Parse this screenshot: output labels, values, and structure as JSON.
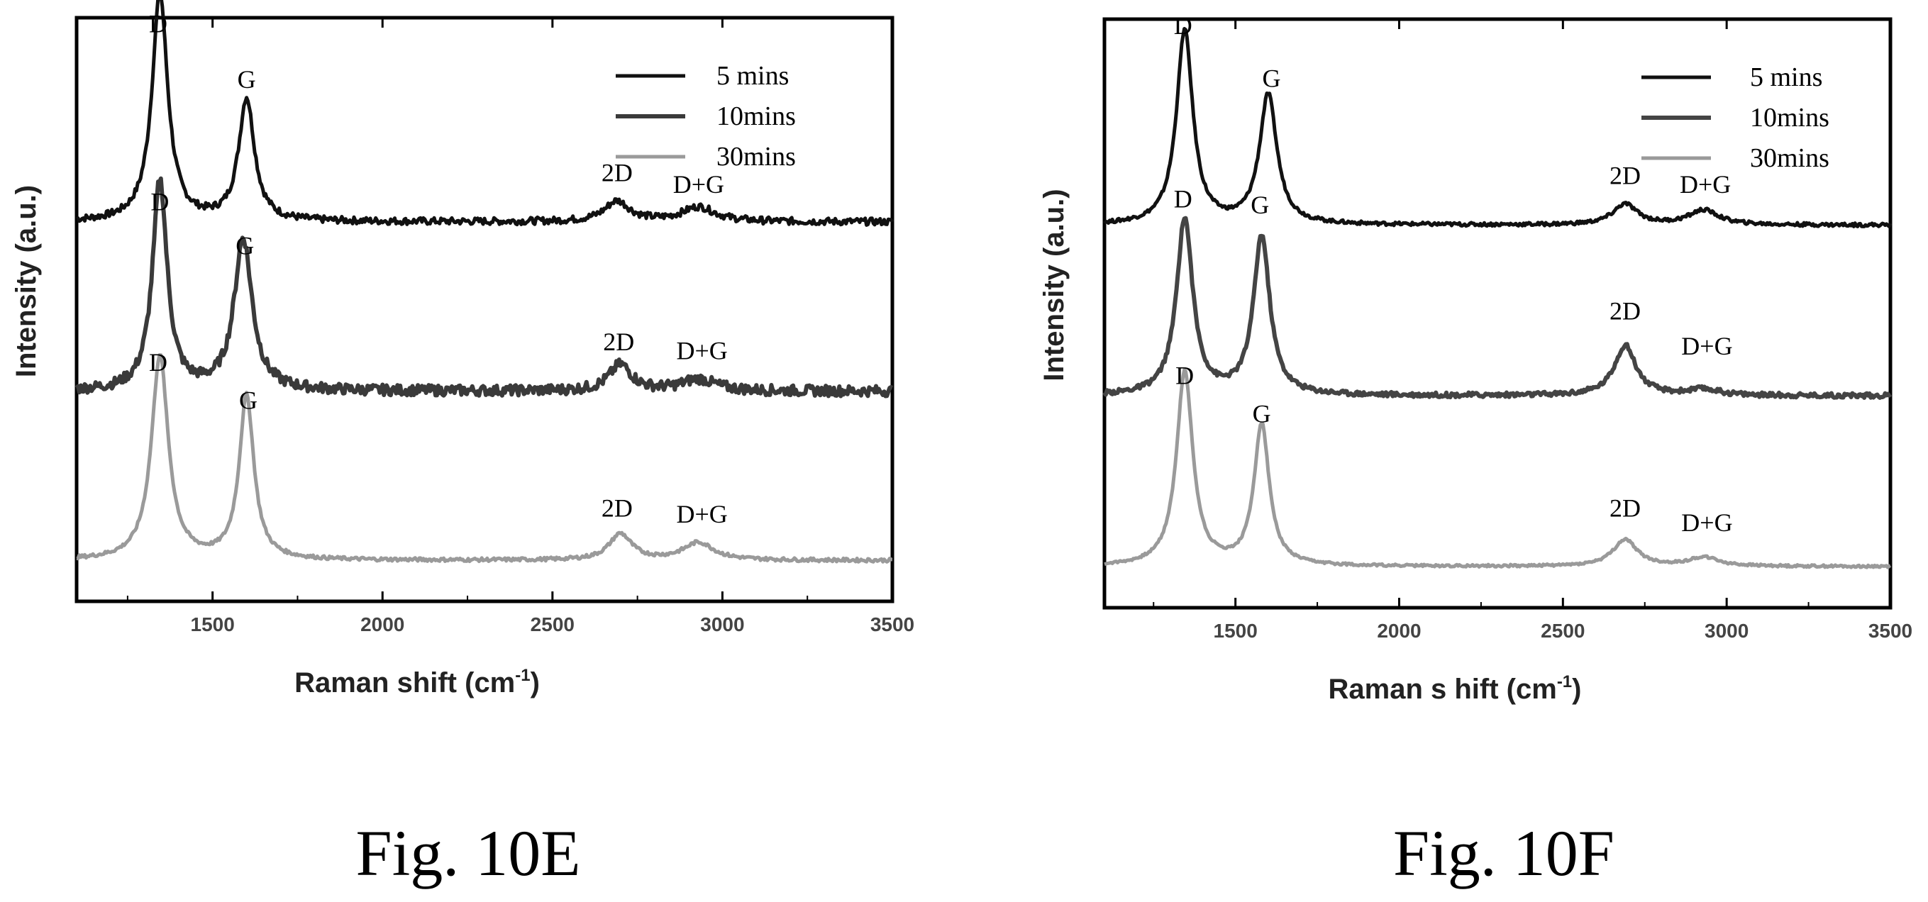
{
  "figures": [
    {
      "caption": "Fig. 10E",
      "chart_data": {
        "type": "line",
        "xlabel": "Raman shift (cm",
        "xlabel_sup": "-1",
        "xlabel_close": ")",
        "ylabel": "Intensity (a.u.)",
        "xlim": [
          1100,
          3500
        ],
        "ylim": [
          0,
          10
        ],
        "xticks": [
          1500,
          2000,
          2500,
          3000,
          3500
        ],
        "x_tick_labels": [
          "1500",
          "2000",
          "2500",
          "3000",
          "3500"
        ],
        "legend_position": "top-right",
        "series": [
          {
            "name": "5 mins",
            "offset": 6.5,
            "color": "#111111",
            "stroke_width": 5,
            "dash": "",
            "noise": 0.06,
            "peaks": [
              [
                1345,
                3.9,
                28
              ],
              [
                1600,
                2.1,
                28
              ],
              [
                2690,
                0.35,
                45
              ],
              [
                2930,
                0.25,
                60
              ]
            ]
          },
          {
            "name": "10mins",
            "offset": 3.6,
            "color": "#3a3a3a",
            "stroke_width": 6,
            "dash": "",
            "noise": 0.09,
            "peaks": [
              [
                1345,
                3.6,
                26
              ],
              [
                1590,
                2.6,
                32
              ],
              [
                2700,
                0.45,
                40
              ],
              [
                2930,
                0.2,
                60
              ]
            ]
          },
          {
            "name": "30mins",
            "offset": 0.7,
            "color": "#9a9a9a",
            "stroke_width": 5,
            "dash": "",
            "noise": 0.03,
            "peaks": [
              [
                1345,
                3.5,
                30
              ],
              [
                1600,
                2.8,
                26
              ],
              [
                2700,
                0.45,
                40
              ],
              [
                2930,
                0.3,
                55
              ]
            ]
          }
        ],
        "annotations": [
          {
            "text": "D",
            "x": 1340,
            "y": 9.75
          },
          {
            "text": "G",
            "x": 1600,
            "y": 8.8
          },
          {
            "text": "2D",
            "x": 2690,
            "y": 7.2
          },
          {
            "text": "D+G",
            "x": 2930,
            "y": 7.0
          },
          {
            "text": "D",
            "x": 1345,
            "y": 6.7
          },
          {
            "text": "G",
            "x": 1595,
            "y": 5.95
          },
          {
            "text": "2D",
            "x": 2695,
            "y": 4.3
          },
          {
            "text": "D+G",
            "x": 2940,
            "y": 4.15
          },
          {
            "text": "D",
            "x": 1340,
            "y": 3.95
          },
          {
            "text": "G",
            "x": 1605,
            "y": 3.3
          },
          {
            "text": "2D",
            "x": 2690,
            "y": 1.45
          },
          {
            "text": "D+G",
            "x": 2940,
            "y": 1.35
          }
        ]
      }
    },
    {
      "caption": "Fig. 10F",
      "chart_data": {
        "type": "line",
        "xlabel": "Raman s hift (cm",
        "xlabel_sup": "-1",
        "xlabel_close": ")",
        "ylabel": "Intensity (a.u.)",
        "xlim": [
          1100,
          3500
        ],
        "ylim": [
          0,
          10
        ],
        "xticks": [
          1500,
          2000,
          2500,
          3000,
          3500
        ],
        "x_tick_labels": [
          "1500",
          "2000",
          "2500",
          "3000",
          "3500"
        ],
        "legend_position": "top-right",
        "series": [
          {
            "name": "5 mins",
            "offset": 6.5,
            "color": "#111111",
            "stroke_width": 5,
            "dash": "",
            "noise": 0.03,
            "peaks": [
              [
                1345,
                3.3,
                30
              ],
              [
                1600,
                2.2,
                32
              ],
              [
                2690,
                0.35,
                45
              ],
              [
                2930,
                0.25,
                55
              ]
            ]
          },
          {
            "name": "10mins",
            "offset": 3.6,
            "color": "#444444",
            "stroke_width": 6,
            "dash": "",
            "noise": 0.04,
            "peaks": [
              [
                1345,
                3.0,
                30
              ],
              [
                1580,
                2.7,
                30
              ],
              [
                2690,
                0.85,
                40
              ],
              [
                2930,
                0.1,
                60
              ]
            ]
          },
          {
            "name": "30mins",
            "offset": 0.7,
            "color": "#9a9a9a",
            "stroke_width": 5,
            "dash": "",
            "noise": 0.02,
            "peaks": [
              [
                1345,
                3.3,
                30
              ],
              [
                1580,
                2.4,
                28
              ],
              [
                2690,
                0.45,
                45
              ],
              [
                2930,
                0.15,
                55
              ]
            ]
          }
        ],
        "annotations": [
          {
            "text": "D",
            "x": 1340,
            "y": 9.75
          },
          {
            "text": "G",
            "x": 1610,
            "y": 8.85
          },
          {
            "text": "2D",
            "x": 2690,
            "y": 7.2
          },
          {
            "text": "D+G",
            "x": 2935,
            "y": 7.05
          },
          {
            "text": "D",
            "x": 1340,
            "y": 6.8
          },
          {
            "text": "G",
            "x": 1575,
            "y": 6.7
          },
          {
            "text": "2D",
            "x": 2690,
            "y": 4.9
          },
          {
            "text": "D+G",
            "x": 2940,
            "y": 4.3
          },
          {
            "text": "D",
            "x": 1345,
            "y": 3.8
          },
          {
            "text": "G",
            "x": 1580,
            "y": 3.15
          },
          {
            "text": "2D",
            "x": 2690,
            "y": 1.55
          },
          {
            "text": "D+G",
            "x": 2940,
            "y": 1.3
          }
        ]
      }
    }
  ]
}
